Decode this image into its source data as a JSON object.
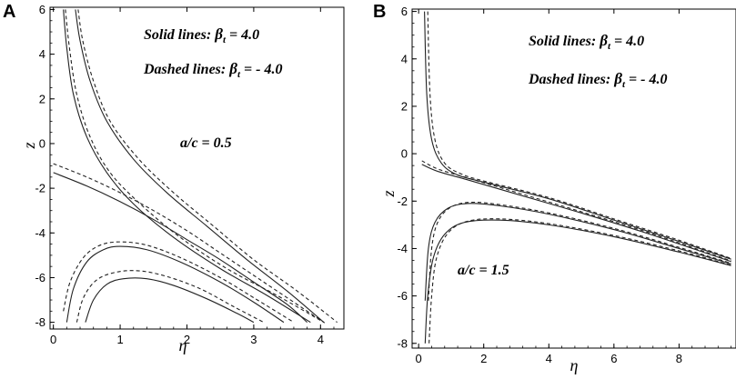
{
  "chart_data": [
    {
      "panel_label": "A",
      "type": "line",
      "xlabel": "η",
      "ylabel": "z",
      "xlim": [
        -0.05,
        4.35
      ],
      "ylim": [
        -8.3,
        6.1
      ],
      "x_ticks": [
        "0",
        "1",
        "2",
        "3",
        "4"
      ],
      "y_ticks": [
        "6",
        "4",
        "2",
        "0",
        "-2",
        "-4",
        "-6",
        "-8"
      ],
      "grid": false,
      "annotations": {
        "solid_prefix": "Solid lines:",
        "dashed_prefix": "Dashed lines:",
        "beta_symbol": "β",
        "beta_sub": "t",
        "solid_value": "=  4.0",
        "dashed_value": "=  - 4.0",
        "ratio": "a/c = 0.5"
      },
      "series": [
        {
          "style": "solid",
          "points": [
            [
              0.15,
              6.0
            ],
            [
              0.2,
              4.3
            ],
            [
              0.3,
              2.2
            ],
            [
              0.5,
              0.3
            ],
            [
              0.8,
              -1.3
            ],
            [
              1.2,
              -2.7
            ],
            [
              1.8,
              -4.2
            ],
            [
              2.5,
              -5.6
            ],
            [
              3.2,
              -6.8
            ],
            [
              3.85,
              -8.0
            ]
          ]
        },
        {
          "style": "dashed",
          "points": [
            [
              0.18,
              6.0
            ],
            [
              0.24,
              4.3
            ],
            [
              0.35,
              2.2
            ],
            [
              0.55,
              0.3
            ],
            [
              0.85,
              -1.3
            ],
            [
              1.3,
              -2.7
            ],
            [
              1.9,
              -4.2
            ],
            [
              2.6,
              -5.6
            ],
            [
              3.35,
              -6.8
            ],
            [
              4.05,
              -8.0
            ]
          ]
        },
        {
          "style": "solid",
          "points": [
            [
              0.33,
              6.0
            ],
            [
              0.4,
              4.6
            ],
            [
              0.55,
              2.8
            ],
            [
              0.8,
              1.0
            ],
            [
              1.2,
              -0.7
            ],
            [
              1.7,
              -2.2
            ],
            [
              2.3,
              -3.7
            ],
            [
              2.9,
              -5.2
            ],
            [
              3.5,
              -6.6
            ],
            [
              4.05,
              -8.0
            ]
          ]
        },
        {
          "style": "dashed",
          "points": [
            [
              0.37,
              6.0
            ],
            [
              0.44,
              4.6
            ],
            [
              0.6,
              2.8
            ],
            [
              0.85,
              1.0
            ],
            [
              1.28,
              -0.7
            ],
            [
              1.8,
              -2.2
            ],
            [
              2.4,
              -3.7
            ],
            [
              3.0,
              -5.2
            ],
            [
              3.65,
              -6.6
            ],
            [
              4.25,
              -8.0
            ]
          ]
        },
        {
          "style": "solid",
          "points": [
            [
              0.0,
              -1.3
            ],
            [
              0.5,
              -1.9
            ],
            [
              1.0,
              -2.6
            ],
            [
              1.5,
              -3.4
            ],
            [
              2.0,
              -4.3
            ],
            [
              2.5,
              -5.2
            ],
            [
              3.0,
              -6.2
            ],
            [
              3.5,
              -7.2
            ],
            [
              3.8,
              -8.0
            ]
          ]
        },
        {
          "style": "dashed",
          "points": [
            [
              0.0,
              -0.9
            ],
            [
              0.5,
              -1.5
            ],
            [
              1.0,
              -2.2
            ],
            [
              1.5,
              -3.0
            ],
            [
              2.0,
              -3.9
            ],
            [
              2.5,
              -4.9
            ],
            [
              3.0,
              -5.9
            ],
            [
              3.5,
              -6.9
            ],
            [
              4.0,
              -7.9
            ],
            [
              4.05,
              -8.0
            ]
          ]
        },
        {
          "style": "dashed",
          "points": [
            [
              0.15,
              -7.5
            ],
            [
              0.25,
              -6.2
            ],
            [
              0.45,
              -5.1
            ],
            [
              0.7,
              -4.55
            ],
            [
              1.0,
              -4.4
            ],
            [
              1.4,
              -4.55
            ],
            [
              1.9,
              -5.1
            ],
            [
              2.5,
              -6.0
            ],
            [
              3.0,
              -6.9
            ],
            [
              3.6,
              -8.0
            ]
          ]
        },
        {
          "style": "solid",
          "points": [
            [
              0.2,
              -8.0
            ],
            [
              0.3,
              -6.5
            ],
            [
              0.5,
              -5.3
            ],
            [
              0.75,
              -4.75
            ],
            [
              1.0,
              -4.6
            ],
            [
              1.4,
              -4.75
            ],
            [
              1.9,
              -5.3
            ],
            [
              2.5,
              -6.2
            ],
            [
              3.0,
              -7.1
            ],
            [
              3.45,
              -8.0
            ]
          ]
        },
        {
          "style": "dashed",
          "points": [
            [
              0.35,
              -8.0
            ],
            [
              0.45,
              -6.9
            ],
            [
              0.65,
              -6.1
            ],
            [
              0.95,
              -5.75
            ],
            [
              1.3,
              -5.7
            ],
            [
              1.7,
              -5.95
            ],
            [
              2.2,
              -6.5
            ],
            [
              2.7,
              -7.3
            ],
            [
              3.15,
              -8.0
            ]
          ]
        },
        {
          "style": "solid",
          "points": [
            [
              0.48,
              -8.0
            ],
            [
              0.6,
              -7.0
            ],
            [
              0.8,
              -6.3
            ],
            [
              1.05,
              -6.05
            ],
            [
              1.4,
              -6.05
            ],
            [
              1.8,
              -6.35
            ],
            [
              2.3,
              -6.95
            ],
            [
              2.75,
              -7.6
            ],
            [
              3.0,
              -8.0
            ]
          ]
        }
      ]
    },
    {
      "panel_label": "B",
      "type": "line",
      "xlabel": "η",
      "ylabel": "z",
      "xlim": [
        -0.2,
        9.75
      ],
      "ylim": [
        -8.2,
        6.1
      ],
      "x_ticks": [
        "0",
        "2",
        "4",
        "6",
        "8"
      ],
      "y_ticks": [
        "6",
        "4",
        "2",
        "0",
        "-2",
        "-4",
        "-6",
        "-8"
      ],
      "grid": false,
      "annotations": {
        "solid_prefix": "Solid lines:",
        "dashed_prefix": "Dashed lines:",
        "beta_symbol": "β",
        "beta_sub": "t",
        "solid_value": "=  4.0",
        "dashed_value": "=  - 4.0",
        "ratio": "a/c = 1.5"
      },
      "series": [
        {
          "style": "solid",
          "points": [
            [
              0.18,
              6.0
            ],
            [
              0.25,
              2.5
            ],
            [
              0.4,
              0.6
            ],
            [
              0.7,
              -0.4
            ],
            [
              1.2,
              -0.9
            ],
            [
              2.0,
              -1.2
            ],
            [
              4.0,
              -1.9
            ],
            [
              6.0,
              -2.8
            ],
            [
              8.0,
              -3.7
            ],
            [
              9.6,
              -4.45
            ]
          ]
        },
        {
          "style": "dashed",
          "points": [
            [
              0.28,
              6.0
            ],
            [
              0.35,
              2.5
            ],
            [
              0.5,
              0.6
            ],
            [
              0.8,
              -0.4
            ],
            [
              1.3,
              -0.85
            ],
            [
              2.0,
              -1.15
            ],
            [
              4.0,
              -1.85
            ],
            [
              6.0,
              -2.75
            ],
            [
              8.0,
              -3.65
            ],
            [
              9.6,
              -4.42
            ]
          ]
        },
        {
          "style": "solid",
          "points": [
            [
              0.1,
              -0.45
            ],
            [
              0.6,
              -0.75
            ],
            [
              1.5,
              -1.1
            ],
            [
              3.0,
              -1.7
            ],
            [
              5.0,
              -2.5
            ],
            [
              7.0,
              -3.35
            ],
            [
              9.6,
              -4.55
            ]
          ]
        },
        {
          "style": "dashed",
          "points": [
            [
              0.1,
              -0.3
            ],
            [
              0.6,
              -0.65
            ],
            [
              1.5,
              -1.02
            ],
            [
              3.0,
              -1.63
            ],
            [
              5.0,
              -2.45
            ],
            [
              7.0,
              -3.3
            ],
            [
              9.6,
              -4.52
            ]
          ]
        },
        {
          "style": "solid",
          "points": [
            [
              0.2,
              -6.2
            ],
            [
              0.3,
              -4.0
            ],
            [
              0.5,
              -2.9
            ],
            [
              0.9,
              -2.3
            ],
            [
              1.5,
              -2.1
            ],
            [
              2.5,
              -2.2
            ],
            [
              4.0,
              -2.55
            ],
            [
              6.0,
              -3.2
            ],
            [
              8.0,
              -4.0
            ],
            [
              9.6,
              -4.65
            ]
          ]
        },
        {
          "style": "dashed",
          "points": [
            [
              0.3,
              -6.2
            ],
            [
              0.4,
              -4.0
            ],
            [
              0.6,
              -2.85
            ],
            [
              1.0,
              -2.25
            ],
            [
              1.6,
              -2.05
            ],
            [
              2.5,
              -2.15
            ],
            [
              4.0,
              -2.5
            ],
            [
              6.0,
              -3.15
            ],
            [
              8.0,
              -3.95
            ],
            [
              9.6,
              -4.62
            ]
          ]
        },
        {
          "style": "solid",
          "points": [
            [
              0.2,
              -8.0
            ],
            [
              0.28,
              -6.0
            ],
            [
              0.45,
              -4.4
            ],
            [
              0.8,
              -3.4
            ],
            [
              1.4,
              -2.9
            ],
            [
              2.5,
              -2.8
            ],
            [
              4.0,
              -3.0
            ],
            [
              6.0,
              -3.5
            ],
            [
              8.0,
              -4.15
            ],
            [
              9.6,
              -4.72
            ]
          ]
        },
        {
          "style": "dashed",
          "points": [
            [
              0.32,
              -8.0
            ],
            [
              0.4,
              -6.0
            ],
            [
              0.55,
              -4.4
            ],
            [
              0.9,
              -3.35
            ],
            [
              1.5,
              -2.85
            ],
            [
              2.5,
              -2.75
            ],
            [
              4.0,
              -2.95
            ],
            [
              6.0,
              -3.45
            ],
            [
              8.0,
              -4.1
            ],
            [
              9.6,
              -4.7
            ]
          ]
        }
      ]
    }
  ]
}
